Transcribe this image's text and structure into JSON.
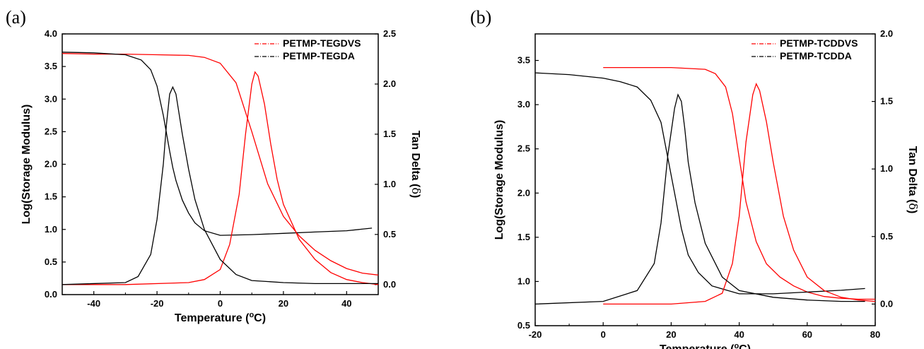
{
  "panels": [
    {
      "label": "(a)"
    },
    {
      "label": "(b)"
    }
  ],
  "chart_data": [
    {
      "type": "line",
      "xlabel": "Temperature (",
      "xlabel_sup": "o",
      "xlabel_suffix": "C)",
      "ylabel": "Log(Storage Modulus)",
      "y2label": "Tan Delta (",
      "y2label_symbol": "δ",
      "y2label_suffix": ")",
      "xlim": [
        -50,
        50
      ],
      "ylim": [
        0.0,
        4.0
      ],
      "y2lim": [
        -0.1,
        2.5
      ],
      "xticks": [
        -40,
        -20,
        0,
        20,
        40
      ],
      "yticks": [
        "0.0",
        "0.5",
        "1.0",
        "1.5",
        "2.0",
        "2.5",
        "3.0",
        "3.5",
        "4.0"
      ],
      "y2ticks": [
        "0.0",
        "0.5",
        "1.0",
        "1.5",
        "2.0",
        "2.5"
      ],
      "grid": false,
      "legend_position": "top-right",
      "colors": {
        "red": "#ff0000",
        "black": "#000000",
        "gray": "#999999"
      },
      "series": [
        {
          "name": "PETMP-TEGDVS",
          "color": "#ff0000",
          "axis": "left",
          "x": [
            -50,
            -40,
            -30,
            -20,
            -10,
            -5,
            0,
            5,
            10,
            15,
            20,
            25,
            30,
            35,
            40,
            45,
            50
          ],
          "values": [
            3.7,
            3.69,
            3.69,
            3.68,
            3.67,
            3.64,
            3.55,
            3.25,
            2.5,
            1.7,
            1.2,
            0.9,
            0.68,
            0.52,
            0.4,
            0.33,
            0.3
          ]
        },
        {
          "name": "PETMP-TEGDA",
          "color": "#000000",
          "axis": "left",
          "x": [
            -50,
            -40,
            -30,
            -25,
            -22,
            -20,
            -18,
            -16,
            -15,
            -14,
            -12,
            -10,
            -8,
            -5,
            0,
            10,
            20,
            30,
            40,
            48
          ],
          "values": [
            3.72,
            3.71,
            3.68,
            3.6,
            3.45,
            3.2,
            2.75,
            2.2,
            1.95,
            1.75,
            1.45,
            1.25,
            1.1,
            0.98,
            0.91,
            0.92,
            0.94,
            0.96,
            0.98,
            1.02
          ]
        },
        {
          "name": "PETMP-TEGDVS tan delta",
          "color": "#ff0000",
          "axis": "right",
          "x": [
            -50,
            -30,
            -10,
            -5,
            0,
            3,
            6,
            8,
            10,
            11,
            12,
            14,
            16,
            18,
            20,
            25,
            30,
            35,
            40,
            45,
            50
          ],
          "values": [
            0.0,
            0.0,
            0.02,
            0.05,
            0.15,
            0.4,
            0.9,
            1.5,
            2.0,
            2.12,
            2.08,
            1.8,
            1.4,
            1.05,
            0.8,
            0.45,
            0.25,
            0.12,
            0.05,
            0.02,
            0.0
          ]
        },
        {
          "name": "PETMP-TEGDA tan delta",
          "color": "#000000",
          "axis": "right",
          "x": [
            -50,
            -30,
            -26,
            -22,
            -20,
            -18,
            -17,
            -16,
            -15,
            -14,
            -12,
            -10,
            -8,
            -5,
            0,
            5,
            10,
            20,
            30,
            40,
            50
          ],
          "values": [
            0.0,
            0.02,
            0.08,
            0.3,
            0.65,
            1.2,
            1.6,
            1.9,
            1.97,
            1.9,
            1.5,
            1.15,
            0.85,
            0.55,
            0.25,
            0.1,
            0.04,
            0.02,
            0.01,
            0.01,
            0.01
          ]
        }
      ]
    },
    {
      "type": "line",
      "xlabel": "Temperature (",
      "xlabel_sup": "o",
      "xlabel_suffix": "C)",
      "ylabel": "Log(Storage Modulus)",
      "y2label": "Tan Delta (",
      "y2label_symbol": "δ",
      "y2label_suffix": ")",
      "xlim": [
        -20,
        80
      ],
      "ylim": [
        0.5,
        3.8
      ],
      "y2lim": [
        -0.16,
        2.0
      ],
      "xticks": [
        -20,
        0,
        20,
        40,
        60,
        80
      ],
      "yticks": [
        "0.5",
        "1.0",
        "1.5",
        "2.0",
        "2.5",
        "3.0",
        "3.5"
      ],
      "y2ticks": [
        "0.0",
        "0.5",
        "1.0",
        "1.5",
        "2.0"
      ],
      "grid": false,
      "legend_position": "top-right",
      "colors": {
        "red": "#ff0000",
        "black": "#000000",
        "gray": "#999999"
      },
      "series": [
        {
          "name": "PETMP-TCDDVS",
          "color": "#ff0000",
          "axis": "left",
          "x": [
            0,
            10,
            20,
            30,
            33,
            36,
            38,
            40,
            42,
            45,
            48,
            52,
            56,
            60,
            65,
            70,
            75,
            80
          ],
          "values": [
            3.42,
            3.42,
            3.42,
            3.4,
            3.35,
            3.2,
            2.9,
            2.4,
            1.9,
            1.45,
            1.2,
            1.05,
            0.95,
            0.88,
            0.83,
            0.81,
            0.8,
            0.8
          ]
        },
        {
          "name": "PETMP-TCDDA",
          "color": "#000000",
          "axis": "left",
          "x": [
            -20,
            -10,
            0,
            5,
            10,
            14,
            17,
            19,
            21,
            23,
            25,
            28,
            32,
            40,
            50,
            60,
            70,
            77
          ],
          "values": [
            3.36,
            3.34,
            3.3,
            3.26,
            3.2,
            3.05,
            2.8,
            2.4,
            2.0,
            1.6,
            1.3,
            1.1,
            0.95,
            0.86,
            0.86,
            0.88,
            0.9,
            0.92
          ]
        },
        {
          "name": "PETMP-TCDDVS tan delta",
          "color": "#ff0000",
          "axis": "right",
          "x": [
            0,
            20,
            30,
            35,
            38,
            40,
            42,
            44,
            45,
            46,
            48,
            50,
            53,
            56,
            60,
            65,
            70,
            75,
            80
          ],
          "values": [
            0.0,
            0.0,
            0.02,
            0.08,
            0.3,
            0.65,
            1.2,
            1.55,
            1.63,
            1.58,
            1.35,
            1.05,
            0.65,
            0.4,
            0.2,
            0.1,
            0.05,
            0.03,
            0.02
          ]
        },
        {
          "name": "PETMP-TCDDA tan delta",
          "color": "#000000",
          "axis": "right",
          "x": [
            -20,
            0,
            10,
            15,
            17,
            19,
            21,
            22,
            23,
            24,
            25,
            27,
            30,
            35,
            40,
            50,
            60,
            70,
            77
          ],
          "values": [
            0.0,
            0.02,
            0.1,
            0.3,
            0.6,
            1.1,
            1.45,
            1.55,
            1.5,
            1.3,
            1.05,
            0.75,
            0.45,
            0.2,
            0.1,
            0.05,
            0.03,
            0.02,
            0.02
          ]
        }
      ]
    }
  ]
}
